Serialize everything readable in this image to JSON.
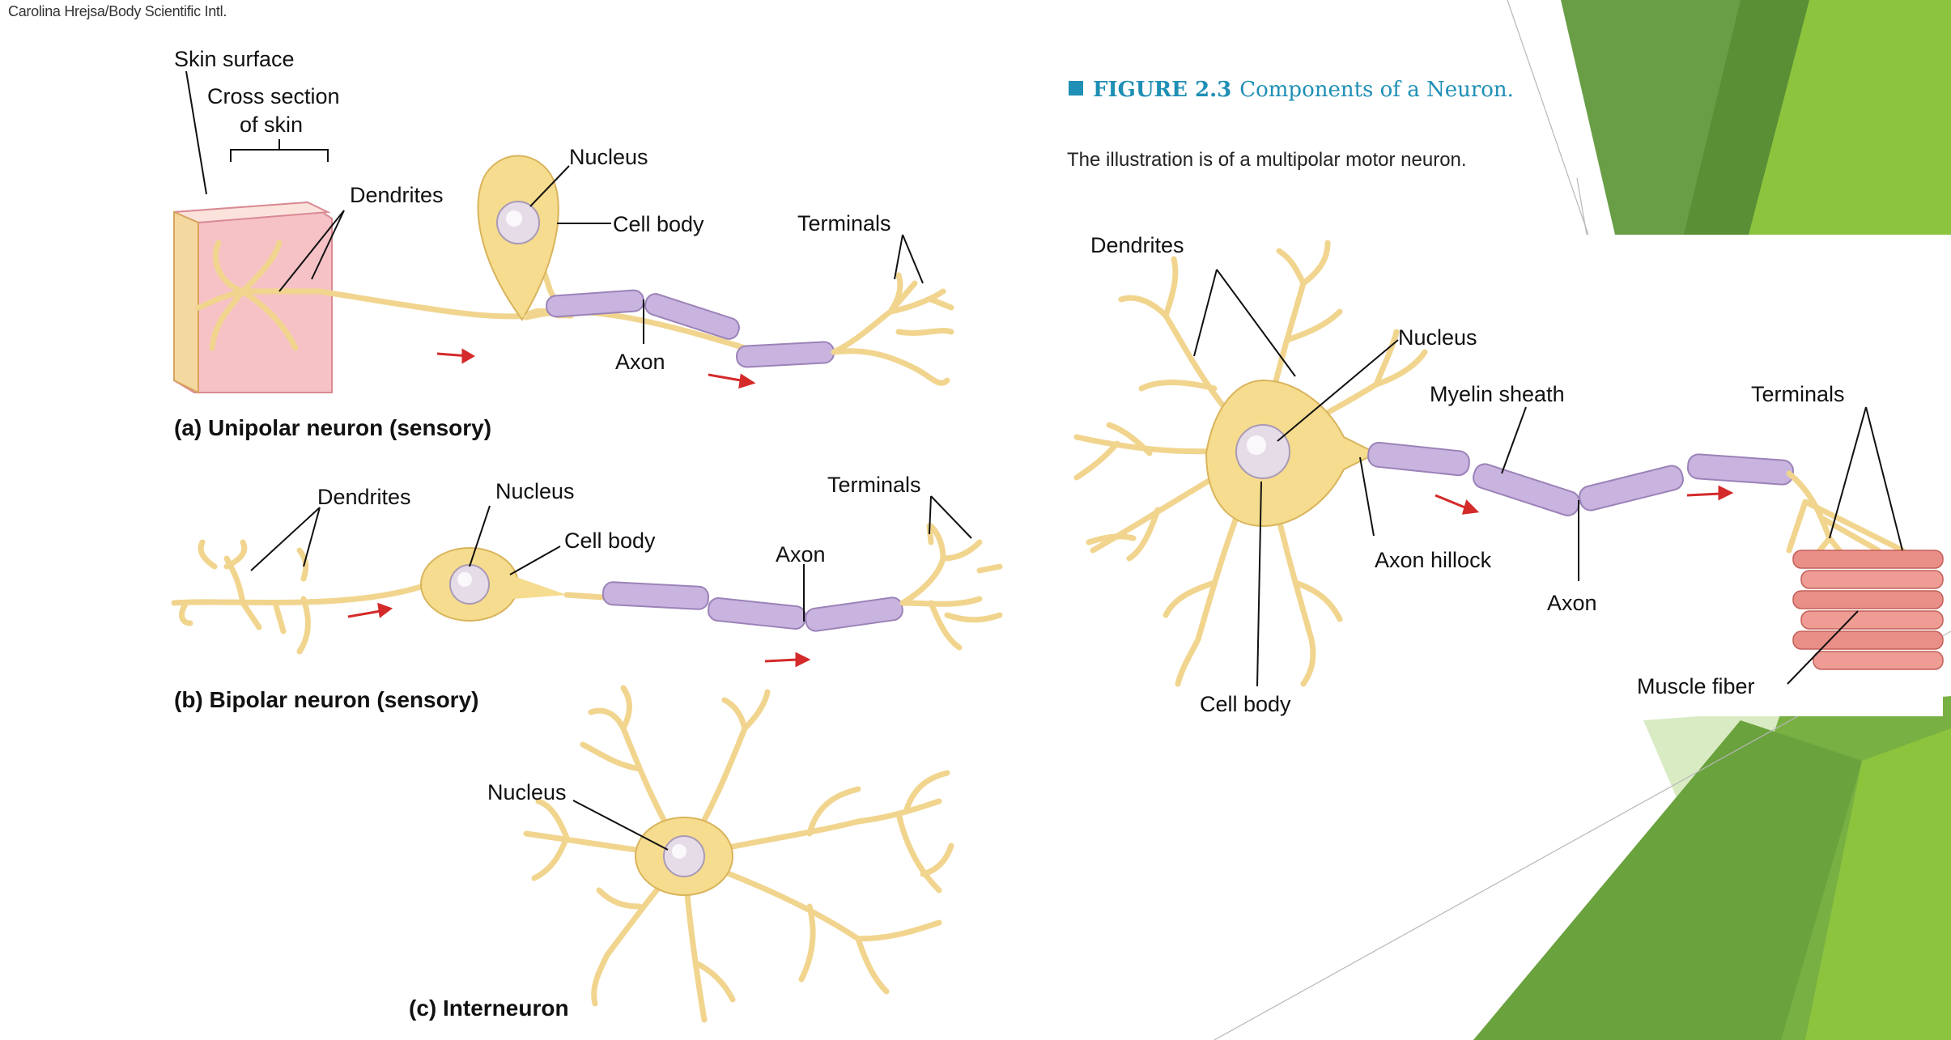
{
  "credit": "Carolina Hrejsa/Body Scientific Intl.",
  "figure": {
    "number": "FIGURE 2.3",
    "title": "Components of a Neuron.",
    "caption": "The illustration is of a multipolar motor neuron."
  },
  "panel_a": {
    "skin_surface": "Skin surface",
    "cross_section_1": "Cross section",
    "cross_section_2": "of skin",
    "dendrites": "Dendrites",
    "nucleus": "Nucleus",
    "cell_body": "Cell body",
    "terminals": "Terminals",
    "axon": "Axon",
    "caption": "(a) Unipolar neuron (sensory)"
  },
  "panel_b": {
    "dendrites": "Dendrites",
    "nucleus": "Nucleus",
    "cell_body": "Cell body",
    "axon": "Axon",
    "terminals": "Terminals",
    "caption": "(b) Bipolar neuron (sensory)"
  },
  "panel_c": {
    "nucleus": "Nucleus",
    "caption": "(c) Interneuron"
  },
  "motor": {
    "dendrites": "Dendrites",
    "nucleus": "Nucleus",
    "myelin_sheath": "Myelin sheath",
    "terminals": "Terminals",
    "axon_hillock": "Axon hillock",
    "axon": "Axon",
    "muscle_fiber": "Muscle fiber",
    "cell_body": "Cell body"
  },
  "colors": {
    "accent": "#1f8fb5",
    "green_dark": "#5e9a3c",
    "green_light": "#8dc63f",
    "neuron": "#f6dc8e",
    "myelin": "#c9b3df",
    "signal_arrow": "#d42a2a"
  }
}
